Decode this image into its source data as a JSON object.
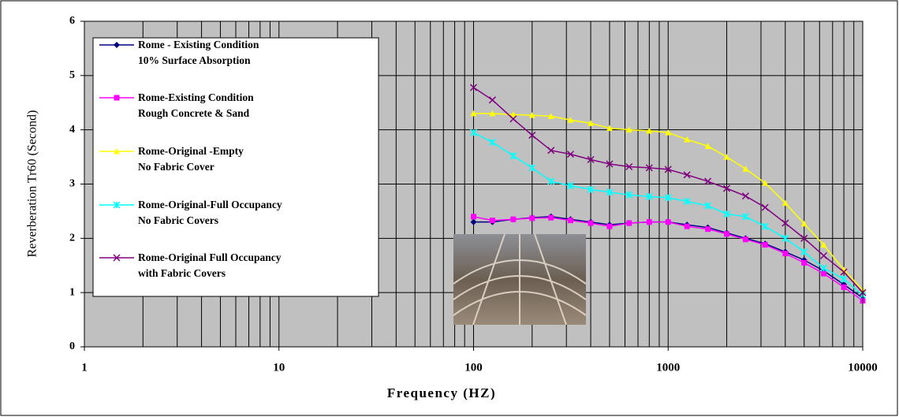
{
  "chart_data": {
    "type": "line",
    "x_label": "Frequency (HZ)",
    "y_label": "Reverberation Tr60 (Second)",
    "log_x": true,
    "grid": true,
    "xlim": [
      1,
      10000
    ],
    "xticks": [
      1,
      10,
      100,
      1000,
      10000
    ],
    "ylim": [
      0,
      6
    ],
    "yticks": [
      0,
      1,
      2,
      3,
      4,
      5,
      6
    ],
    "legend": "upper left",
    "x": [
      100,
      125,
      160,
      200,
      250,
      315,
      400,
      500,
      630,
      800,
      1000,
      1250,
      1600,
      2000,
      2500,
      3150,
      4000,
      5000,
      6300,
      8000,
      10000
    ],
    "series": [
      {
        "name": "Rome - Existing Condition\n10% Surface Absorption",
        "color": "#000080",
        "marker": "diamond",
        "values": [
          2.3,
          2.3,
          2.35,
          2.38,
          2.4,
          2.35,
          2.3,
          2.25,
          2.28,
          2.3,
          2.3,
          2.25,
          2.2,
          2.1,
          2.0,
          1.9,
          1.75,
          1.6,
          1.4,
          1.15,
          0.9
        ]
      },
      {
        "name": "Rome-Existing Condition\nRough Concrete & Sand",
        "color": "#ff00ff",
        "marker": "square",
        "values": [
          2.4,
          2.33,
          2.35,
          2.37,
          2.38,
          2.33,
          2.28,
          2.22,
          2.28,
          2.3,
          2.3,
          2.22,
          2.17,
          2.08,
          1.98,
          1.88,
          1.72,
          1.55,
          1.35,
          1.1,
          0.85
        ]
      },
      {
        "name": "Rome-Original -Empty\nNo Fabric Cover",
        "color": "#ffff00",
        "marker": "triangle",
        "values": [
          4.3,
          4.3,
          4.28,
          4.27,
          4.25,
          4.18,
          4.12,
          4.03,
          4.0,
          3.98,
          3.95,
          3.82,
          3.7,
          3.5,
          3.28,
          3.02,
          2.65,
          2.27,
          1.88,
          1.42,
          1.05
        ]
      },
      {
        "name": "Rome-Original-Full Occupancy\nNo Fabric Covers",
        "color": "#00ffff",
        "marker": "star",
        "values": [
          3.95,
          3.77,
          3.52,
          3.3,
          3.05,
          2.97,
          2.9,
          2.85,
          2.8,
          2.77,
          2.75,
          2.68,
          2.6,
          2.45,
          2.4,
          2.22,
          2.0,
          1.75,
          1.45,
          1.25,
          0.95
        ]
      },
      {
        "name": "Rome-Original Full Occupancy\nwith Fabric Covers",
        "color": "#800080",
        "marker": "x",
        "values": [
          4.78,
          4.55,
          4.2,
          3.9,
          3.62,
          3.55,
          3.45,
          3.37,
          3.32,
          3.3,
          3.27,
          3.17,
          3.05,
          2.92,
          2.78,
          2.57,
          2.28,
          2.0,
          1.68,
          1.38,
          1.0
        ]
      }
    ]
  }
}
